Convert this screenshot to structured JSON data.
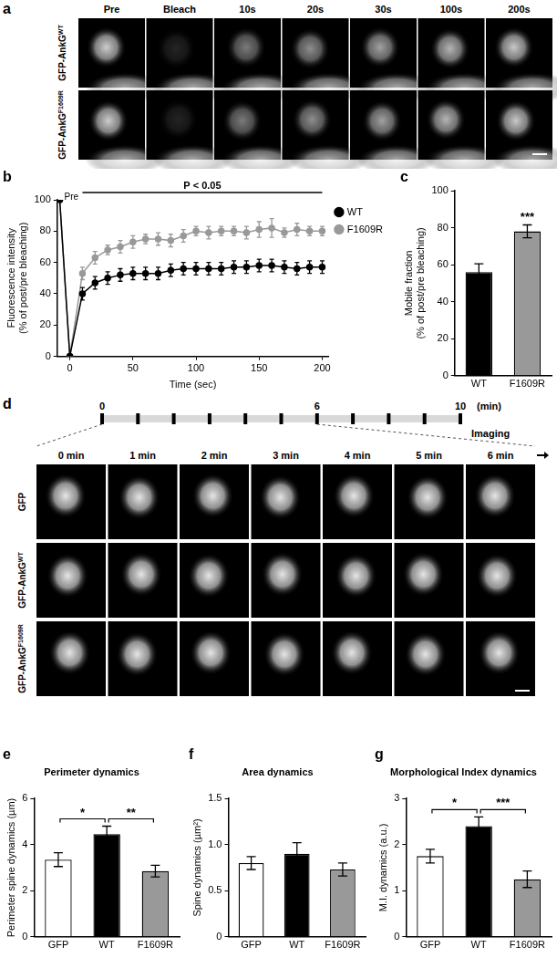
{
  "chart_data": [
    {
      "panel": "b",
      "type": "line",
      "x": [
        -8,
        0,
        10,
        20,
        30,
        40,
        50,
        60,
        70,
        80,
        90,
        100,
        110,
        120,
        130,
        140,
        150,
        160,
        170,
        180,
        190,
        200
      ],
      "xlim": [
        -10,
        205
      ],
      "xticks": [
        0,
        50,
        100,
        150,
        200
      ],
      "ylim": [
        0,
        100
      ],
      "yticks": [
        0,
        20,
        40,
        60,
        80,
        100
      ],
      "x_label": "Time (sec)",
      "y_label": [
        "Fluorescence intensity",
        "(% of post/pre bleaching)"
      ],
      "grid": false,
      "legend": "upper right",
      "series": [
        {
          "name": "WT",
          "color": "#000000",
          "marker": "circle",
          "line_style": "solid",
          "values": [
            100,
            0,
            40,
            47,
            50,
            52,
            53,
            53,
            53,
            55,
            56,
            56,
            56,
            56,
            57,
            57,
            58,
            58,
            57,
            56,
            57,
            57
          ],
          "errors": [
            0,
            0,
            4,
            4,
            4,
            4,
            4,
            4,
            4,
            4,
            4,
            4,
            4,
            4,
            4,
            4,
            4,
            4,
            4,
            4,
            4,
            4
          ]
        },
        {
          "name": "F1609R",
          "color": "#999999",
          "marker": "circle",
          "line_style": "solid",
          "values": [
            100,
            0,
            53,
            63,
            68,
            70,
            73,
            75,
            75,
            74,
            77,
            80,
            79,
            80,
            80,
            79,
            81,
            82,
            79,
            81,
            80,
            80
          ],
          "errors": [
            0,
            0,
            4,
            4,
            3,
            4,
            4,
            3,
            4,
            4,
            4,
            3,
            4,
            3,
            3,
            4,
            5,
            6,
            3,
            4,
            3,
            3
          ]
        }
      ],
      "annotations": [
        {
          "text": "Pre",
          "x": -8,
          "y": 100
        },
        {
          "text": "P < 0.05",
          "x_range": [
            10,
            200
          ]
        }
      ]
    },
    {
      "panel": "c",
      "type": "bar",
      "categories": [
        "WT",
        "F1609R"
      ],
      "values": [
        56,
        78
      ],
      "errors": [
        4.5,
        3.5
      ],
      "colors": [
        "#000000",
        "#999999"
      ],
      "ylim": [
        0,
        100
      ],
      "yticks": [
        0,
        20,
        40,
        60,
        80,
        100
      ],
      "y_label": [
        "Mobile fraction",
        "(% of post/pre bleaching)"
      ],
      "grid": false,
      "significance": [
        {
          "categories": [
            "F1609R"
          ],
          "label": "***"
        }
      ]
    },
    {
      "panel": "e",
      "type": "bar",
      "title": "Perimeter dynamics",
      "categories": [
        "GFP",
        "WT",
        "F1609R"
      ],
      "values": [
        3.35,
        4.45,
        2.85
      ],
      "errors": [
        0.3,
        0.35,
        0.25
      ],
      "colors": [
        "#ffffff",
        "#000000",
        "#999999"
      ],
      "ylim": [
        0,
        6
      ],
      "yticks": [
        0,
        2,
        4,
        6
      ],
      "y_label": "Perimeter spine dynamics (µm)",
      "grid": false,
      "significance": [
        {
          "categories": [
            "GFP",
            "WT"
          ],
          "label": "*"
        },
        {
          "categories": [
            "WT",
            "F1609R"
          ],
          "label": "**"
        }
      ]
    },
    {
      "panel": "f",
      "type": "bar",
      "title": "Area dynamics",
      "categories": [
        "GFP",
        "WT",
        "F1609R"
      ],
      "values": [
        0.8,
        0.9,
        0.73
      ],
      "errors": [
        0.07,
        0.12,
        0.07
      ],
      "colors": [
        "#ffffff",
        "#000000",
        "#999999"
      ],
      "ylim": [
        0,
        1.5
      ],
      "yticks": [
        0,
        0.5,
        {
          "value": 1,
          "label": "1.0"
        },
        1.5
      ],
      "y_label": "Spine dynamics (µm²)",
      "grid": false,
      "significance": []
    },
    {
      "panel": "g",
      "type": "bar",
      "title": "Morphological Index dynamics",
      "categories": [
        "GFP",
        "WT",
        "F1609R"
      ],
      "values": [
        1.75,
        2.4,
        1.25
      ],
      "errors": [
        0.15,
        0.2,
        0.18
      ],
      "colors": [
        "#ffffff",
        "#000000",
        "#999999"
      ],
      "ylim": [
        0,
        3
      ],
      "yticks": [
        0,
        1,
        2,
        3
      ],
      "y_label": "M.I. dynamics (a.u.)",
      "grid": false,
      "significance": [
        {
          "categories": [
            "GFP",
            "WT"
          ],
          "label": "*"
        },
        {
          "categories": [
            "WT",
            "F1609R"
          ],
          "label": "***"
        }
      ]
    }
  ],
  "image_panels": [
    {
      "panel": "a",
      "columns": [
        "Pre",
        "Bleach",
        "10s",
        "20s",
        "30s",
        "100s",
        "200s"
      ],
      "rows": [
        {
          "text": "GFP-AnkG",
          "sup": "WT"
        },
        {
          "text": "GFP-AnkG",
          "sup": "F1609R"
        }
      ]
    },
    {
      "panel": "d",
      "timeline": {
        "ticks": [
          0,
          1,
          2,
          3,
          4,
          5,
          6,
          7,
          8,
          9,
          10
        ],
        "labels": [
          0,
          6,
          10
        ],
        "unit": "(min)",
        "caption": "Imaging"
      },
      "columns": [
        "0 min",
        "1 min",
        "2 min",
        "3 min",
        "4 min",
        "5 min",
        "6 min"
      ],
      "rows": [
        {
          "text": "GFP"
        },
        {
          "text": "GFP-AnkG",
          "sup": "WT"
        },
        {
          "text": "GFP-AnkG",
          "sup": "F1609R"
        }
      ]
    }
  ]
}
